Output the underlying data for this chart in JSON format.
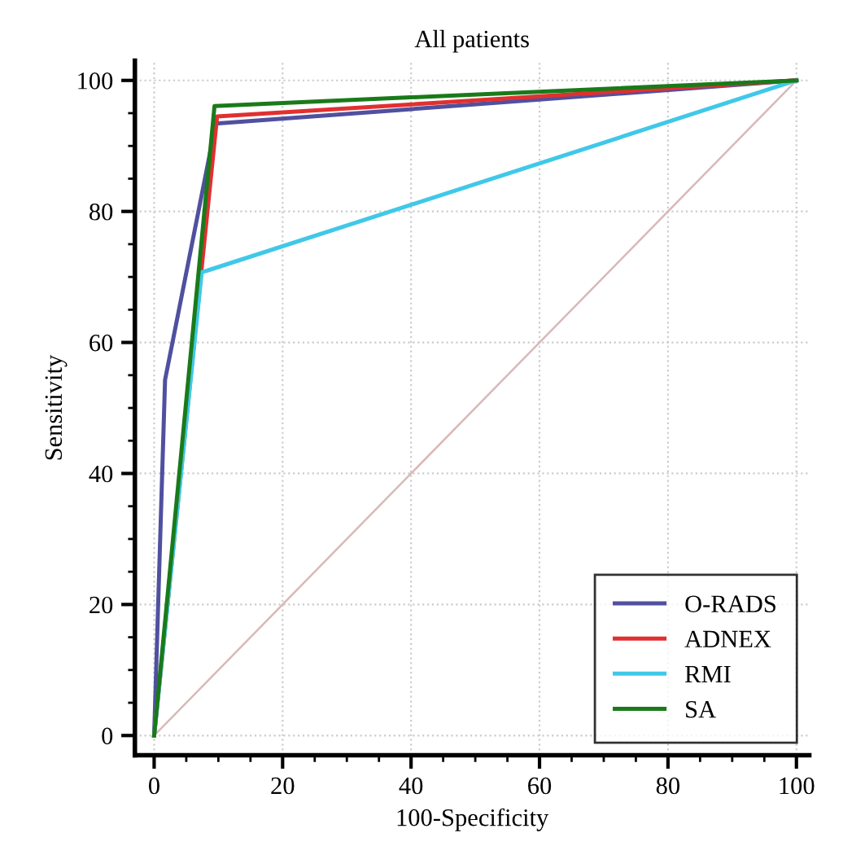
{
  "chart_data": {
    "type": "line",
    "title": "All patients",
    "xlabel": "100-Specificity",
    "ylabel": "Sensitivity",
    "xlim": [
      -3,
      102
    ],
    "ylim": [
      -3,
      103
    ],
    "xticks": [
      0,
      20,
      40,
      60,
      80,
      100
    ],
    "yticks": [
      0,
      20,
      40,
      60,
      80,
      100
    ],
    "grid": true,
    "legend": "bottom right",
    "marker": "none",
    "line_style": "solid",
    "series": [
      {
        "color": "#d9b8b8",
        "x": [
          0,
          100
        ],
        "values": [
          0,
          100
        ]
      },
      {
        "name": "O-RADS",
        "color": "#5050a0",
        "x": [
          0,
          1.7,
          9.6,
          100
        ],
        "values": [
          0,
          54.3,
          93.4,
          100
        ]
      },
      {
        "name": "ADNEX",
        "color": "#e03030",
        "x": [
          0,
          9.8,
          100
        ],
        "values": [
          0,
          94.5,
          100
        ]
      },
      {
        "name": "RMI",
        "color": "#40c8e8",
        "x": [
          0,
          7.4,
          100
        ],
        "values": [
          0,
          70.7,
          100
        ]
      },
      {
        "name": "SA",
        "color": "#1a7a1a",
        "x": [
          0,
          9.4,
          100
        ],
        "values": [
          0,
          96.1,
          100
        ]
      }
    ]
  }
}
